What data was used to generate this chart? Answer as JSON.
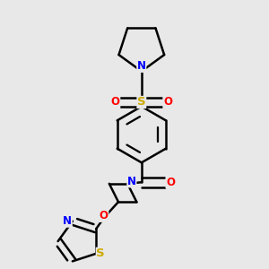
{
  "background_color": "#e8e8e8",
  "atom_colors": {
    "C": "#000000",
    "N": "#0000ff",
    "O": "#ff0000",
    "S_sulfonyl": "#ccaa00",
    "S_thiazole": "#ccaa00"
  },
  "bond_color": "#000000",
  "bond_width": 1.8,
  "figsize": [
    3.0,
    3.0
  ],
  "dpi": 100
}
